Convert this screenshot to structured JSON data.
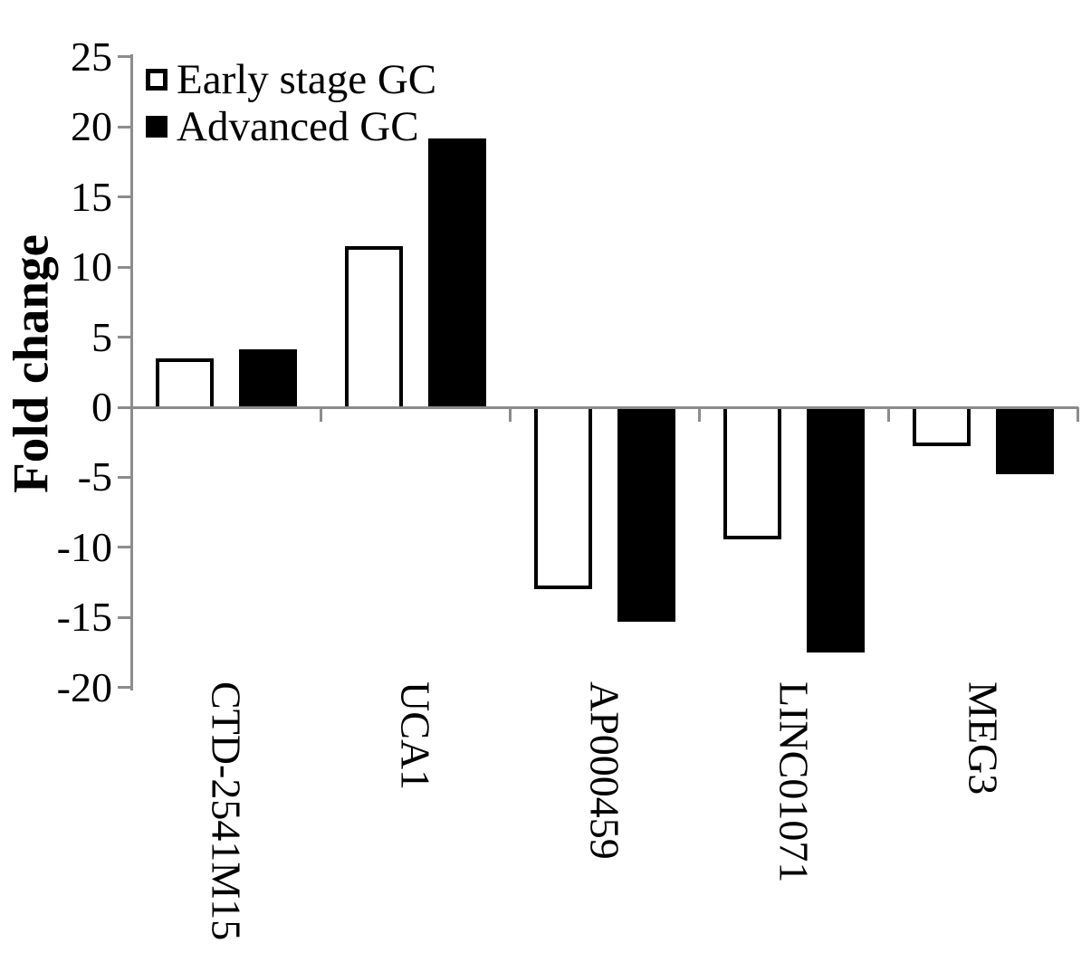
{
  "chart_data": {
    "type": "bar",
    "title": "",
    "xlabel": "",
    "ylabel": "Fold change",
    "categories": [
      "CTD-2541M15",
      "UCA1",
      "AP000459",
      "LINC01071",
      "MEG3"
    ],
    "series": [
      {
        "name": "Early stage GC",
        "fill": "#ffffff",
        "outline": "#000000",
        "values": [
          3.5,
          11.5,
          -13.0,
          -9.4,
          -2.8
        ]
      },
      {
        "name": "Advanced GC",
        "fill": "#000000",
        "outline": "#000000",
        "values": [
          4.1,
          19.2,
          -15.3,
          -17.5,
          -4.8
        ]
      }
    ],
    "ylim": [
      -20,
      25
    ],
    "yticks": [
      25,
      20,
      15,
      10,
      5,
      0,
      -5,
      -10,
      -15,
      -20
    ],
    "grid": false,
    "legend_position": "top-left-inside",
    "axis_color": "#8c8c8c",
    "text_color": "#000000"
  }
}
